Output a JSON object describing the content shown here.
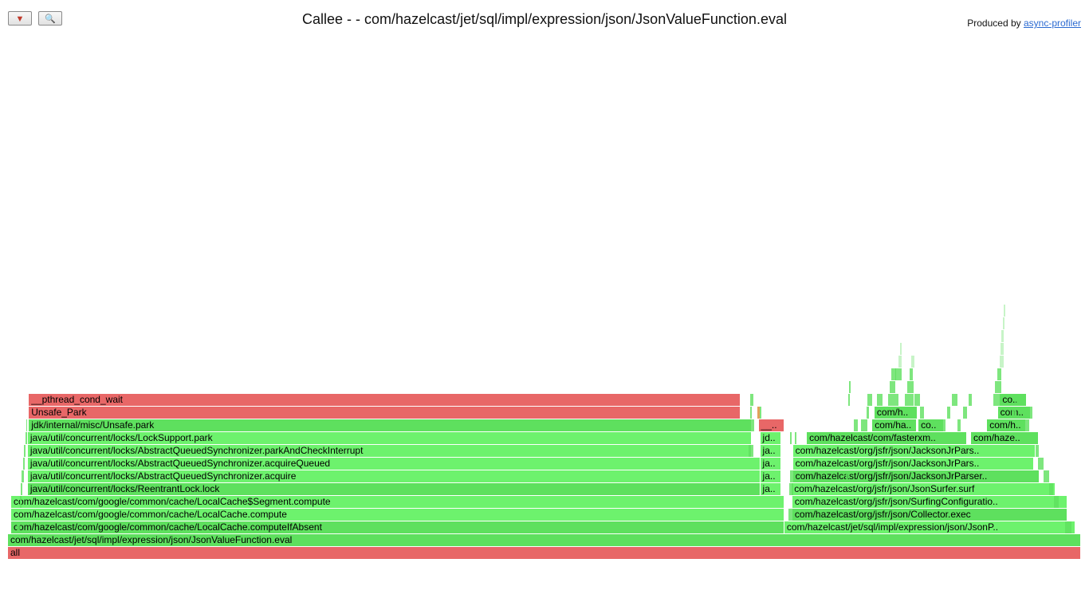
{
  "toolbar": {
    "reverse_icon": "▼",
    "search_icon": "🔍"
  },
  "title": "Callee - - com/hazelcast/jet/sql/impl/expression/json/JsonValueFunction.eval",
  "credit": {
    "prefix": "Produced by ",
    "link_label": "async-profiler"
  },
  "colors": {
    "green": "#5ee05e",
    "green_light": "#6df26d",
    "red": "#e86767",
    "orange": "#e3a15a"
  },
  "frames": [
    {
      "label": "all",
      "depth": 0,
      "start": 0,
      "width": 1,
      "color": "red"
    },
    {
      "label": "com/hazelcast/jet/sql/impl/expression/json/JsonValueFunction.eval",
      "depth": 1,
      "start": 0,
      "width": 1,
      "color": "green"
    },
    {
      "label": "com/hazelcast/com/google/common/cache/LocalCache.computeIfAbsent",
      "depth": 2,
      "start": 0.003,
      "width": 0.7205,
      "color": "green"
    },
    {
      "label": "com/hazelcast/jet/sql/impl/expression/json/JsonP..",
      "depth": 2,
      "start": 0.7235,
      "width": 0.271,
      "color": "green_light"
    },
    {
      "label": "com/hazelcast/com/google/common/cache/LocalCache.compute",
      "depth": 3,
      "start": 0.003,
      "width": 0.7205,
      "color": "green_light"
    },
    {
      "label": "com/hazelcast/org/jsfr/json/Collector.exec",
      "depth": 3,
      "start": 0.731,
      "width": 0.2565,
      "color": "green"
    },
    {
      "label": "com/hazelcast/com/google/common/cache/LocalCache$Segment.compute",
      "depth": 4,
      "start": 0.003,
      "width": 0.7205,
      "color": "green_light"
    },
    {
      "label": "com/hazelcast/org/jsfr/json/SurfingConfiguratio..",
      "depth": 4,
      "start": 0.731,
      "width": 0.2565,
      "color": "green_light"
    },
    {
      "label": "java/util/concurrent/locks/ReentrantLock.lock",
      "depth": 5,
      "start": 0.0185,
      "width": 0.6825,
      "color": "green"
    },
    {
      "label": "ja..",
      "depth": 5,
      "start": 0.701,
      "width": 0.0195,
      "color": "green_light"
    },
    {
      "label": "com/hazelcast/org/jsfr/json/JsonSurfer.surf",
      "depth": 5,
      "start": 0.7305,
      "width": 0.246,
      "color": "green_light"
    },
    {
      "label": "java/util/concurrent/locks/AbstractQueuedSynchronizer.acquire",
      "depth": 6,
      "start": 0.0185,
      "width": 0.6825,
      "color": "green_light"
    },
    {
      "label": "ja..",
      "depth": 6,
      "start": 0.701,
      "width": 0.0195,
      "color": "green_light"
    },
    {
      "label": "com/hazelcast/org/jsfr/json/JacksonJrParser..",
      "depth": 6,
      "start": 0.7315,
      "width": 0.23,
      "color": "green"
    },
    {
      "label": "java/util/concurrent/locks/AbstractQueuedSynchronizer.acquireQueued",
      "depth": 7,
      "start": 0.0185,
      "width": 0.6825,
      "color": "green_light"
    },
    {
      "label": "ja..",
      "depth": 7,
      "start": 0.701,
      "width": 0.0195,
      "color": "green_light"
    },
    {
      "label": "com/hazelcast/org/jsfr/json/JacksonJrPars..",
      "depth": 7,
      "start": 0.7315,
      "width": 0.225,
      "color": "green_light"
    },
    {
      "label": "java/util/concurrent/locks/AbstractQueuedSynchronizer.parkAndCheckInterrupt",
      "depth": 8,
      "start": 0.0185,
      "width": 0.6745,
      "color": "green_light"
    },
    {
      "label": "ja..",
      "depth": 8,
      "start": 0.701,
      "width": 0.0195,
      "color": "green_light"
    },
    {
      "label": "com/hazelcast/org/jsfr/json/JacksonJrPars..",
      "depth": 8,
      "start": 0.7315,
      "width": 0.226,
      "color": "green_light"
    },
    {
      "label": "java/util/concurrent/locks/LockSupport.park",
      "depth": 9,
      "start": 0.0185,
      "width": 0.6745,
      "color": "green_light"
    },
    {
      "label": "jd..",
      "depth": 9,
      "start": 0.701,
      "width": 0.0195,
      "color": "green_light"
    },
    {
      "label": "com/hazelcast/com/fasterxm..",
      "depth": 9,
      "start": 0.7445,
      "width": 0.1495,
      "color": "green"
    },
    {
      "label": "com/haze..",
      "depth": 9,
      "start": 0.8975,
      "width": 0.063,
      "color": "green"
    },
    {
      "label": "jdk/internal/misc/Unsafe.park",
      "depth": 10,
      "start": 0.0195,
      "width": 0.6735,
      "color": "green"
    },
    {
      "label": "__..",
      "depth": 10,
      "start": 0.6995,
      "width": 0.0245,
      "color": "red"
    },
    {
      "label": "com/ha..",
      "depth": 10,
      "start": 0.8055,
      "width": 0.0415,
      "color": "green"
    },
    {
      "label": "co..",
      "depth": 10,
      "start": 0.8485,
      "width": 0.0235,
      "color": "green"
    },
    {
      "label": "com/h..",
      "depth": 10,
      "start": 0.9125,
      "width": 0.0365,
      "color": "green"
    },
    {
      "label": "Unsafe_Park",
      "depth": 11,
      "start": 0.0195,
      "width": 0.6635,
      "color": "red"
    },
    {
      "label": "com/h..",
      "depth": 11,
      "start": 0.8075,
      "width": 0.04,
      "color": "green"
    },
    {
      "label": "com..",
      "depth": 11,
      "start": 0.9225,
      "width": 0.031,
      "color": "green"
    },
    {
      "label": "__pthread_cond_wait",
      "depth": 12,
      "start": 0.0195,
      "width": 0.6635,
      "color": "red"
    },
    {
      "label": "co..",
      "depth": 12,
      "start": 0.9245,
      "width": 0.025,
      "color": "green"
    }
  ]
}
